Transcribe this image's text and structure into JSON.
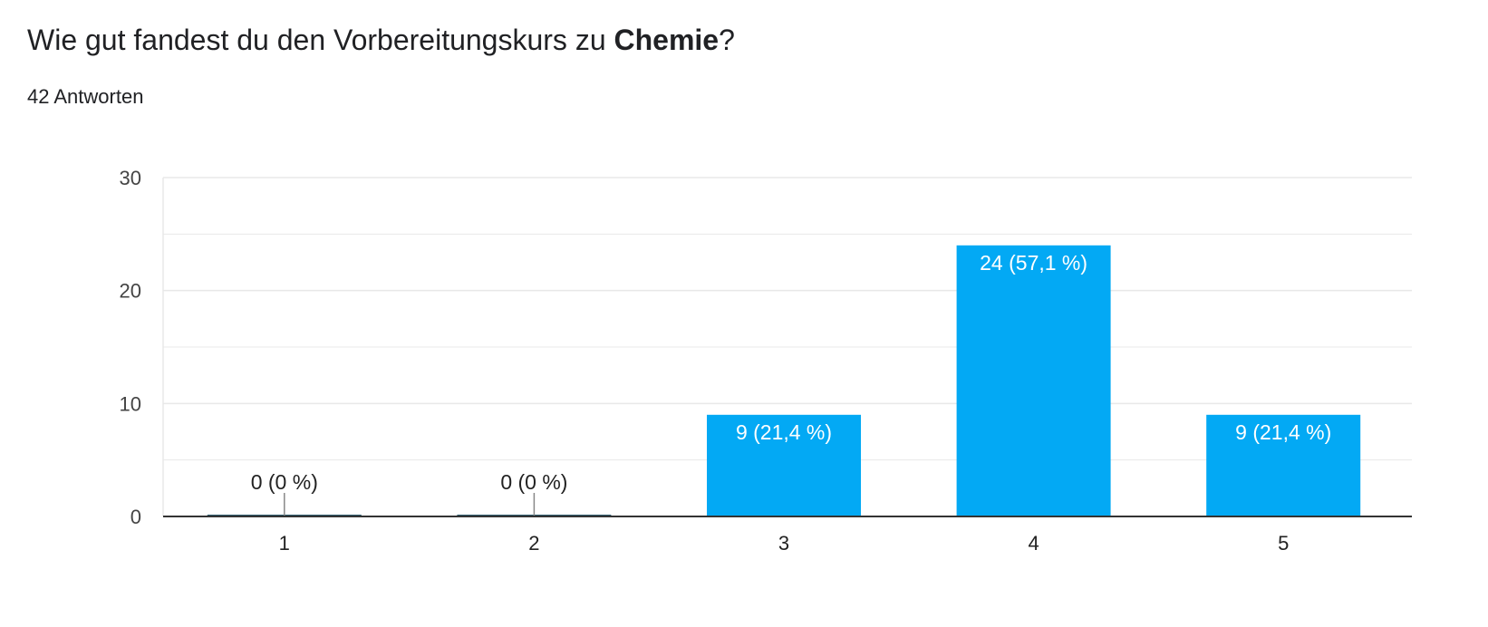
{
  "header": {
    "title_prefix": "Wie gut fandest du den Vorbereitungskurs zu ",
    "title_bold": "Chemie",
    "title_suffix": "?",
    "response_count": "42 Antworten"
  },
  "colors": {
    "bar": "#03a9f4",
    "grid": "#e8e8e8",
    "axis": "#333333"
  },
  "chart_data": {
    "type": "bar",
    "title": "Wie gut fandest du den Vorbereitungskurs zu Chemie?",
    "categories": [
      "1",
      "2",
      "3",
      "4",
      "5"
    ],
    "values": [
      0,
      0,
      9,
      24,
      9
    ],
    "data_labels": [
      "0 (0 %)",
      "0 (0 %)",
      "9 (21,4 %)",
      "24 (57,1 %)",
      "9 (21,4 %)"
    ],
    "yticks": [
      "0",
      "10",
      "20",
      "30"
    ],
    "ylim": [
      0,
      30
    ],
    "grid": true,
    "legend": "none"
  }
}
